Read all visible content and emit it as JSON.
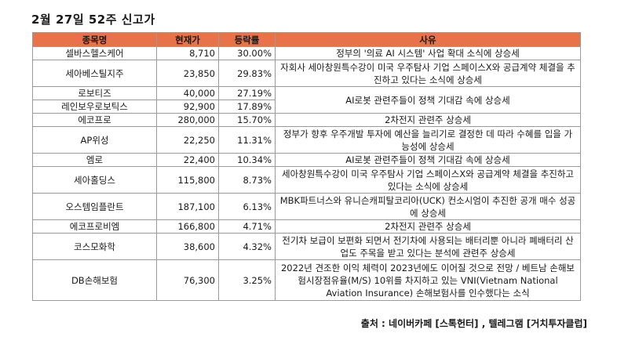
{
  "title": "2월 27일 52주 신고가",
  "table": {
    "headers": [
      "종목명",
      "현재가",
      "등락률",
      "사유"
    ],
    "rows": [
      {
        "name": "셀바스헬스케어",
        "price": "8,710",
        "change": "30.00%",
        "reason": "정부의 '의료 AI 시스템' 사업 확대 소식에 상승세"
      },
      {
        "name": "세아베스틸지주",
        "price": "23,850",
        "change": "29.83%",
        "reason": "자회사 세아창원특수강이 미국 우주탐사 기업 스페이스X와 공급계약 체결을 추진하고 있다는 소식에 상승세"
      },
      {
        "name": "로보티즈",
        "price": "40,000",
        "change": "27.19%"
      },
      {
        "name": "레인보우로보틱스",
        "price": "92,900",
        "change": "17.89%"
      },
      {
        "name": "에코프로",
        "price": "280,000",
        "change": "15.70%",
        "reason": "2차전지 관련주 상승세"
      },
      {
        "name": "AP위성",
        "price": "22,250",
        "change": "11.31%",
        "reason": "정부가 향후 우주개발 투자에 예산을 늘리기로 결정한 데 따라 수혜를 입을 가능성에 상승세"
      },
      {
        "name": "엠로",
        "price": "22,400",
        "change": "10.34%",
        "reason": "AI로봇 관련주들이 정책 기대감 속에 상승세"
      },
      {
        "name": "세아홀딩스",
        "price": "115,800",
        "change": "8.73%",
        "reason": "세아창원특수강이 미국 우주탐사 기업 스페이스X와 공급계약 체결을 추진하고 있다는 소식에 상승세"
      },
      {
        "name": "오스템임플란트",
        "price": "187,100",
        "change": "6.13%",
        "reason": "MBK파트너스와 유니슨캐피탈코리아(UCK) 컨소시엄이 추진한 공개 매수 성공에 상승세"
      },
      {
        "name": "에코프로비엠",
        "price": "166,800",
        "change": "4.71%",
        "reason": "2차전지 관련주 상승세"
      },
      {
        "name": "코스모화학",
        "price": "38,600",
        "change": "4.32%",
        "reason": "전기차 보급이 보편화 되면서 전기차에 사용되는 배터리뿐 아니라 폐배터리 산업도 주목을 받고 있다는 분석에 관련주 상승세"
      },
      {
        "name": "DB손해보험",
        "price": "76,300",
        "change": "3.25%",
        "reason": "2022년 견조한 이익 체력이 2023년에도 이어질 것으로 전망 / 베트남 손해보험시장점유율(M/S) 10위를 차지하고 있는 VNI(Vietnam National Aviation Insurance) 손해보험사를 인수했다는 소식"
      }
    ],
    "merged_reason_robots": "AI로봇 관련주들이 정책 기대감 속에 상승세"
  },
  "source": "출처 : 네이버카페 [스톡헌터] , 텔레그램 [거치투자클럽]"
}
